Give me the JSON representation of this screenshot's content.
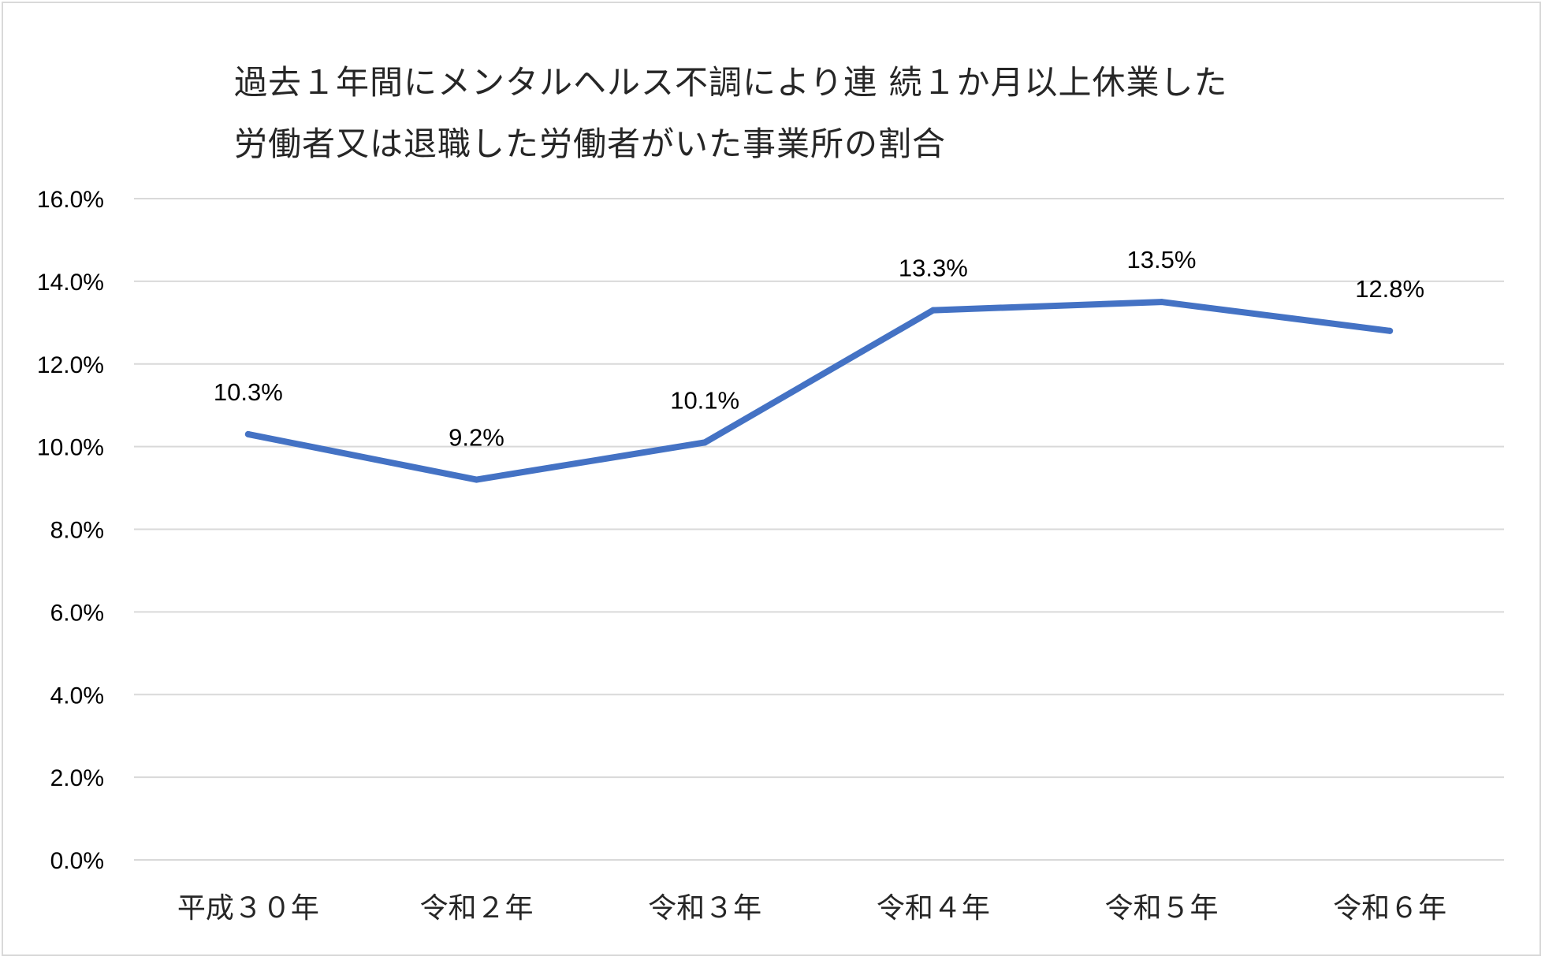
{
  "chart_data": {
    "type": "line",
    "title": [
      "過去１年間にメンタルヘルス不調により連 続１か月以上休業した",
      "労働者又は退職した労働者がいた事業所の割合"
    ],
    "categories": [
      "平成３０年",
      "令和２年",
      "令和３年",
      "令和４年",
      "令和５年",
      "令和６年"
    ],
    "series": [
      {
        "values": [
          10.3,
          9.2,
          10.1,
          13.3,
          13.5,
          12.8
        ],
        "labels": [
          "10.3%",
          "9.2%",
          "10.1%",
          "13.3%",
          "13.5%",
          "12.8%"
        ]
      }
    ],
    "y_ticks": [
      "0.0%",
      "2.0%",
      "4.0%",
      "6.0%",
      "8.0%",
      "10.0%",
      "12.0%",
      "14.0%",
      "16.0%"
    ],
    "ylim": [
      0,
      16
    ],
    "grid": true,
    "legend": "none",
    "line_color": "#4472c4",
    "grid_color": "#d9d9d9"
  }
}
